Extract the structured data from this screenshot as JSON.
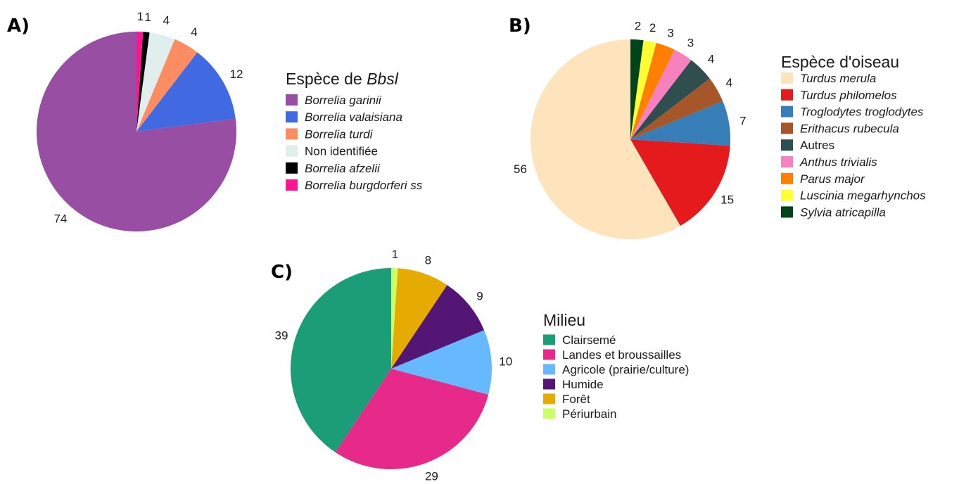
{
  "chart_data": [
    {
      "type": "pie",
      "panel": "A)",
      "legend_title": "Espèce de ",
      "legend_title_italic": "Bbsl",
      "legend_italic": [
        true,
        true,
        true,
        false,
        true,
        true
      ],
      "categories": [
        "Borrelia garinii",
        "Borrelia valaisiana",
        "Borrelia turdi",
        "Non identifiée",
        "Borrelia afzelii",
        "Borrelia burgdorferi ss"
      ],
      "values": [
        74,
        12,
        4,
        4,
        1,
        1
      ],
      "colors": [
        "#984ea3",
        "#4169e1",
        "#fc8d62",
        "#e0eeee",
        "#000000",
        "#ff1493"
      ],
      "legend_position": "right"
    },
    {
      "type": "pie",
      "panel": "B)",
      "legend_title": "Espèce d'oiseau",
      "legend_italic": [
        true,
        true,
        true,
        true,
        false,
        true,
        true,
        true,
        true
      ],
      "categories": [
        "Turdus merula",
        "Turdus philomelos",
        "Troglodytes troglodytes",
        "Erithacus rubecula",
        "Autres",
        "Anthus trivialis",
        "Parus major",
        "Luscinia megarhynchos",
        "Sylvia atricapilla"
      ],
      "values": [
        56,
        15,
        7,
        4,
        4,
        3,
        3,
        2,
        2
      ],
      "colors": [
        "#fde4bd",
        "#e41a1c",
        "#377eb8",
        "#a65628",
        "#2f4f4f",
        "#f781bf",
        "#ff7f00",
        "#ffff33",
        "#00441b"
      ],
      "legend_position": "right"
    },
    {
      "type": "pie",
      "panel": "C)",
      "legend_title": "Milieu",
      "legend_italic": [
        false,
        false,
        false,
        false,
        false,
        false
      ],
      "categories": [
        "Clairsemé",
        "Landes et broussailles",
        "Agricole (prairie/culture)",
        "Humide",
        "Forêt",
        "Périurbain"
      ],
      "values": [
        39,
        29,
        10,
        9,
        8,
        1
      ],
      "colors": [
        "#1b9e77",
        "#e7298a",
        "#66b9ff",
        "#541675",
        "#e6ab02",
        "#ccff66"
      ],
      "legend_position": "right"
    }
  ]
}
